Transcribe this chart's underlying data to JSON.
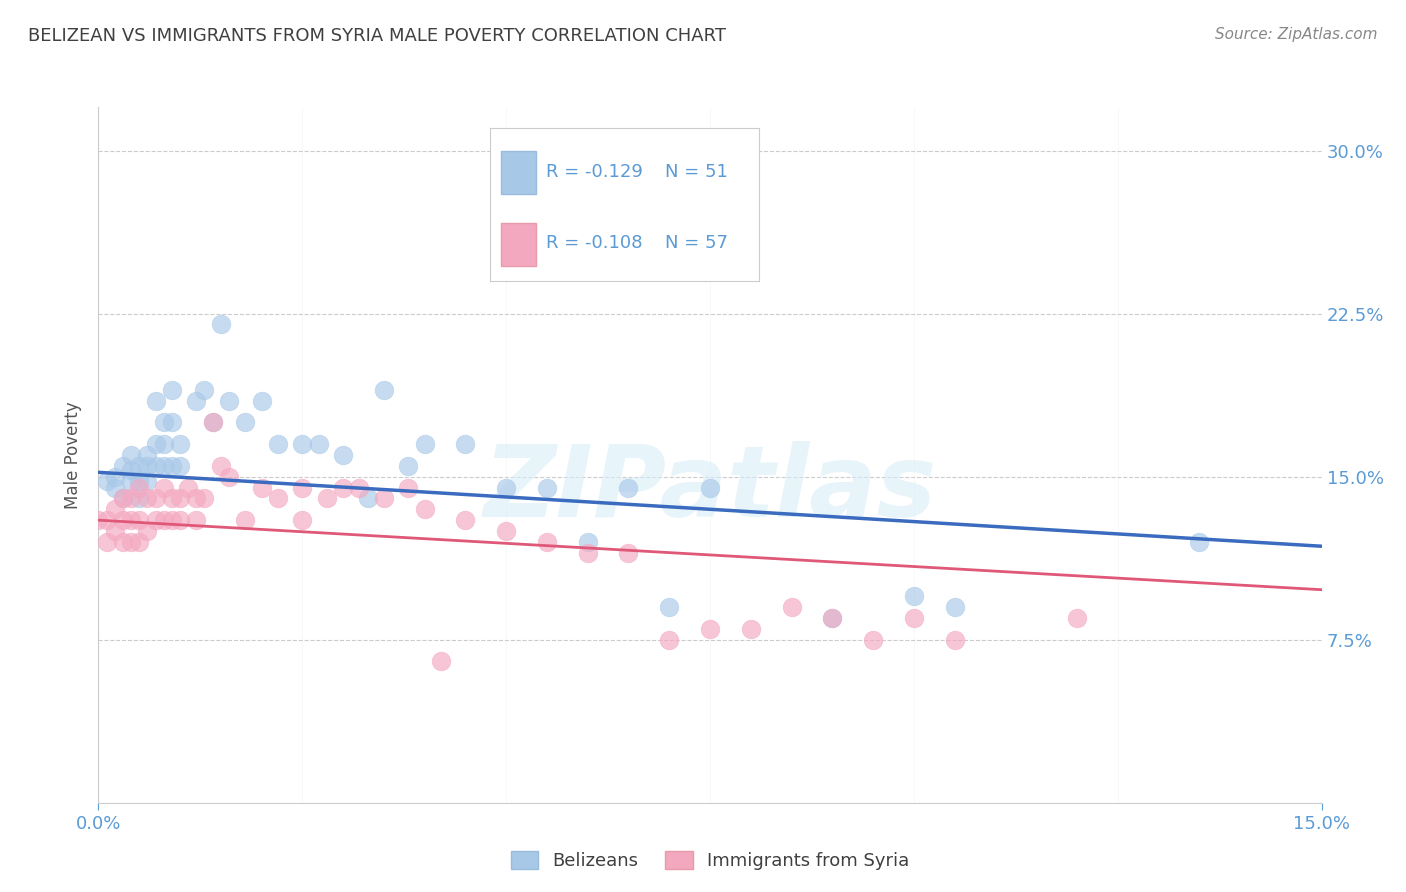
{
  "title": "BELIZEAN VS IMMIGRANTS FROM SYRIA MALE POVERTY CORRELATION CHART",
  "source": "Source: ZipAtlas.com",
  "ylabel": "Male Poverty",
  "xlim": [
    0.0,
    0.15
  ],
  "ylim": [
    0.0,
    0.32
  ],
  "yticks": [
    0.075,
    0.15,
    0.225,
    0.3
  ],
  "ytick_labels": [
    "7.5%",
    "15.0%",
    "22.5%",
    "30.0%"
  ],
  "belizean_color": "#a8c8e8",
  "syria_color": "#f4a8c0",
  "belizean_line_color": "#3a6bbf",
  "syria_line_color": "#e05878",
  "belizean_R": -0.129,
  "belizean_N": 51,
  "syria_R": -0.108,
  "syria_N": 57,
  "legend_label_1": "Belizeans",
  "legend_label_2": "Immigrants from Syria",
  "watermark": "ZIPatlas",
  "background_color": "#ffffff",
  "grid_color": "#cccccc",
  "title_color": "#404040",
  "tick_label_color": "#5b9bd5",
  "blue_line_y0": 0.152,
  "blue_line_y1": 0.118,
  "pink_line_y0": 0.13,
  "pink_line_y1": 0.098,
  "belizean_x": [
    0.001,
    0.002,
    0.002,
    0.003,
    0.003,
    0.004,
    0.004,
    0.004,
    0.005,
    0.005,
    0.005,
    0.006,
    0.006,
    0.006,
    0.007,
    0.007,
    0.007,
    0.008,
    0.008,
    0.008,
    0.009,
    0.009,
    0.009,
    0.01,
    0.01,
    0.012,
    0.013,
    0.014,
    0.015,
    0.016,
    0.018,
    0.02,
    0.022,
    0.025,
    0.027,
    0.03,
    0.033,
    0.035,
    0.038,
    0.04,
    0.045,
    0.05,
    0.055,
    0.06,
    0.065,
    0.07,
    0.075,
    0.09,
    0.1,
    0.105,
    0.135
  ],
  "belizean_y": [
    0.148,
    0.15,
    0.145,
    0.155,
    0.14,
    0.16,
    0.153,
    0.148,
    0.155,
    0.148,
    0.14,
    0.16,
    0.155,
    0.148,
    0.185,
    0.165,
    0.155,
    0.175,
    0.165,
    0.155,
    0.19,
    0.175,
    0.155,
    0.165,
    0.155,
    0.185,
    0.19,
    0.175,
    0.22,
    0.185,
    0.175,
    0.185,
    0.165,
    0.165,
    0.165,
    0.16,
    0.14,
    0.19,
    0.155,
    0.165,
    0.165,
    0.145,
    0.145,
    0.12,
    0.145,
    0.09,
    0.145,
    0.085,
    0.095,
    0.09,
    0.12
  ],
  "syria_x": [
    0.0,
    0.001,
    0.001,
    0.002,
    0.002,
    0.003,
    0.003,
    0.003,
    0.004,
    0.004,
    0.004,
    0.005,
    0.005,
    0.005,
    0.006,
    0.006,
    0.007,
    0.007,
    0.008,
    0.008,
    0.009,
    0.009,
    0.01,
    0.01,
    0.011,
    0.012,
    0.012,
    0.013,
    0.014,
    0.015,
    0.016,
    0.018,
    0.02,
    0.022,
    0.025,
    0.025,
    0.028,
    0.03,
    0.032,
    0.035,
    0.038,
    0.04,
    0.042,
    0.045,
    0.05,
    0.055,
    0.06,
    0.065,
    0.07,
    0.075,
    0.08,
    0.085,
    0.09,
    0.095,
    0.1,
    0.105,
    0.12
  ],
  "syria_y": [
    0.13,
    0.13,
    0.12,
    0.135,
    0.125,
    0.14,
    0.13,
    0.12,
    0.14,
    0.13,
    0.12,
    0.145,
    0.13,
    0.12,
    0.14,
    0.125,
    0.14,
    0.13,
    0.145,
    0.13,
    0.14,
    0.13,
    0.14,
    0.13,
    0.145,
    0.14,
    0.13,
    0.14,
    0.175,
    0.155,
    0.15,
    0.13,
    0.145,
    0.14,
    0.145,
    0.13,
    0.14,
    0.145,
    0.145,
    0.14,
    0.145,
    0.135,
    0.065,
    0.13,
    0.125,
    0.12,
    0.115,
    0.115,
    0.075,
    0.08,
    0.08,
    0.09,
    0.085,
    0.075,
    0.085,
    0.075,
    0.085
  ]
}
